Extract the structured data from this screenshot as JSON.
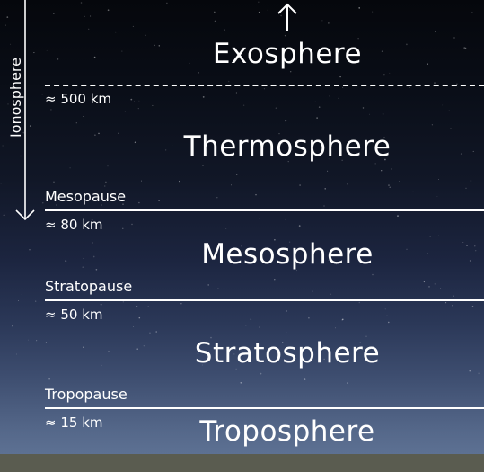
{
  "colors": {
    "sky_top": "#05070c",
    "sky_bottom": "#5d7193",
    "ground": "#5a5c50",
    "lines": "#ffffff",
    "text": "#ffffff"
  },
  "up_arrow_icon": "arrow-up-icon",
  "ionosphere": {
    "label": "Ionosphere",
    "icon": "arrow-down-icon"
  },
  "layers": {
    "exosphere": "Exosphere",
    "thermosphere": "Thermosphere",
    "mesosphere": "Mesosphere",
    "stratosphere": "Stratosphere",
    "troposphere": "Troposphere"
  },
  "boundaries": {
    "thermosphere_exosphere": {
      "altitude": "≈ 500 km",
      "style": "dashed"
    },
    "mesopause": {
      "name": "Mesopause",
      "altitude": "≈ 80 km",
      "style": "solid"
    },
    "stratopause": {
      "name": "Stratopause",
      "altitude": "≈ 50 km",
      "style": "solid"
    },
    "tropopause": {
      "name": "Tropopause",
      "altitude": "≈ 15 km",
      "style": "solid"
    }
  }
}
